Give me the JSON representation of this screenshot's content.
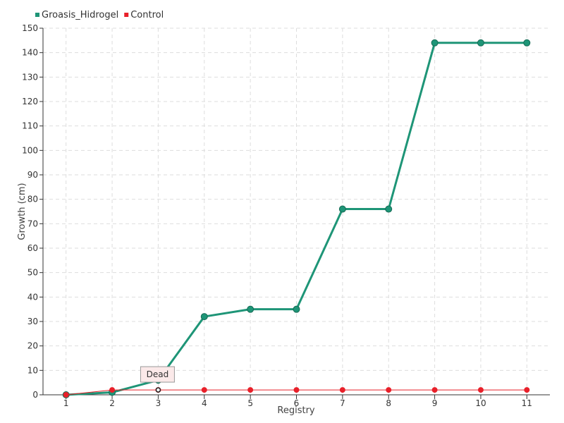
{
  "chart_data": {
    "type": "line",
    "x": [
      1,
      2,
      3,
      4,
      5,
      6,
      7,
      8,
      9,
      10,
      11
    ],
    "series": [
      {
        "name": "Groasis_Hidrogel",
        "color": "#1e9577",
        "values": [
          0,
          1,
          6,
          32,
          35,
          35,
          76,
          76,
          144,
          144,
          144
        ]
      },
      {
        "name": "Control",
        "color": "#e8202a",
        "values": [
          0,
          2,
          2,
          2,
          2,
          2,
          2,
          2,
          2,
          2,
          2
        ]
      }
    ],
    "xlabel": "Registry",
    "ylabel": "Growth (cm)",
    "xlim": [
      0.5,
      11.5
    ],
    "ylim": [
      0,
      150
    ],
    "yticks": [
      0,
      10,
      20,
      30,
      40,
      50,
      60,
      70,
      80,
      90,
      100,
      110,
      120,
      130,
      140,
      150
    ],
    "xticks": [
      1,
      2,
      3,
      4,
      5,
      6,
      7,
      8,
      9,
      10,
      11
    ],
    "grid": true,
    "legend_position": "top-left",
    "annotations": [
      {
        "text": "Dead",
        "x": 3,
        "y": 2,
        "series": "Control"
      }
    ]
  }
}
